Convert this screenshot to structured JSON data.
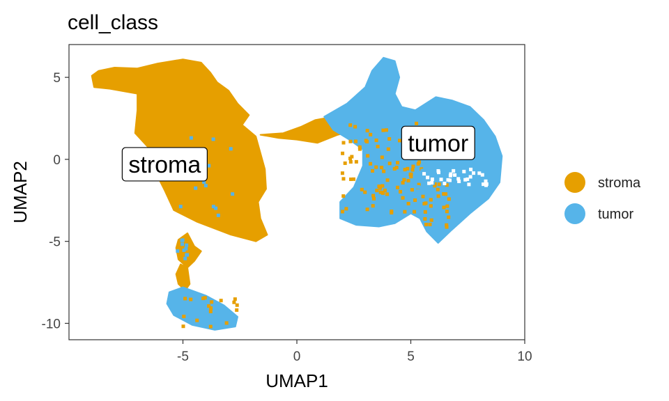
{
  "chart_data": {
    "type": "scatter",
    "title": "cell_class",
    "xlabel": "UMAP1",
    "ylabel": "UMAP2",
    "xlim": [
      -10,
      10
    ],
    "ylim": [
      -11,
      7
    ],
    "x_ticks": [
      -5,
      0,
      5,
      10
    ],
    "x_tick_labels": [
      "-5",
      "0",
      "5",
      "10"
    ],
    "y_ticks": [
      -10,
      -5,
      0,
      5
    ],
    "y_tick_labels": [
      "-10",
      "-5",
      "0",
      "5"
    ],
    "grid": false,
    "legend": {
      "placement": "right"
    },
    "series": [
      {
        "name": "stroma",
        "color": "#E69F00"
      },
      {
        "name": "tumor",
        "color": "#56B4E9"
      }
    ],
    "cluster_labels": [
      {
        "text": "stroma",
        "x": -5.8,
        "y": -0.3
      },
      {
        "text": "tumor",
        "x": 6.2,
        "y": 1.0
      }
    ]
  }
}
